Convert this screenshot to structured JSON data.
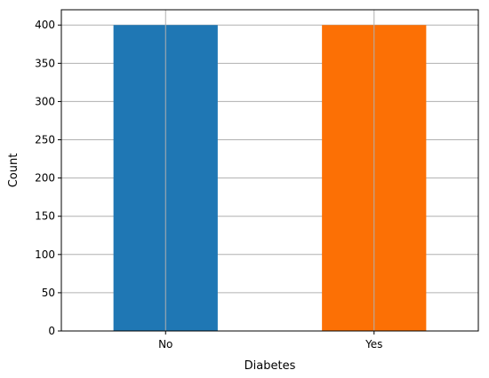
{
  "chart_data": {
    "type": "bar",
    "categories": [
      "No",
      "Yes"
    ],
    "values": [
      400,
      400
    ],
    "colors": [
      "#1f77b4",
      "#fc7005"
    ],
    "title": "",
    "xlabel": "Diabetes",
    "ylabel": "Count",
    "ylim": [
      0,
      420
    ],
    "yticks": [
      0,
      50,
      100,
      150,
      200,
      250,
      300,
      350,
      400
    ],
    "grid": true,
    "legend": "none"
  }
}
